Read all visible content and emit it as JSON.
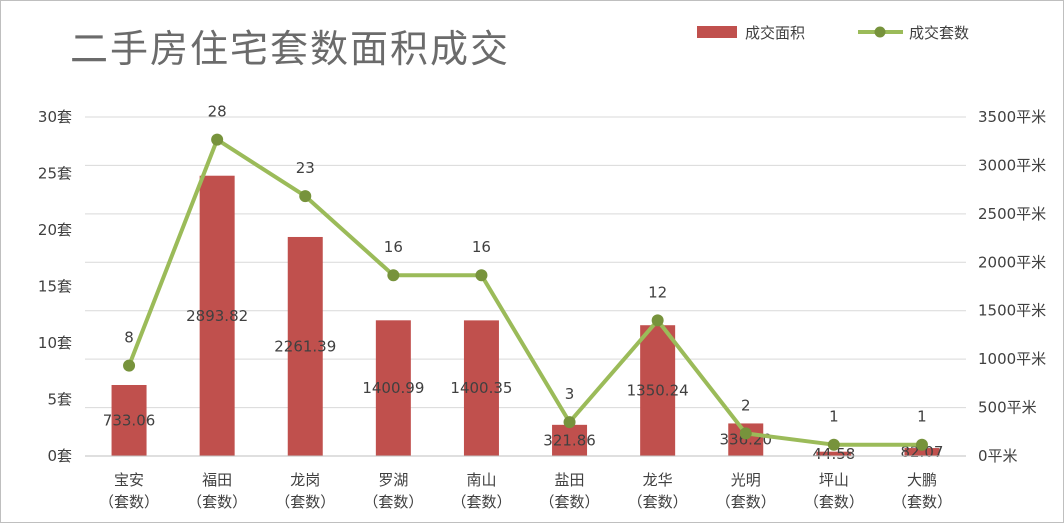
{
  "chart_data": {
    "type": "bar+line",
    "title": "二手房住宅套数面积成交",
    "categories": [
      "宝安",
      "福田",
      "龙岗",
      "罗湖",
      "南山",
      "盐田",
      "龙华",
      "光明",
      "坪山",
      "大鹏"
    ],
    "category_sublabel": "（套数）",
    "series": [
      {
        "name": "成交面积",
        "kind": "bar",
        "axis": "right",
        "color": "#c0504d",
        "values": [
          733.06,
          2893.82,
          2261.39,
          1400.99,
          1400.35,
          321.86,
          1350.24,
          336.2,
          44.58,
          82.07
        ],
        "labels": [
          "733.06",
          "2893.82",
          "2261.39",
          "1400.99",
          "1400.35",
          "321.86",
          "1350.24",
          "336.20",
          "44.58",
          "82.07"
        ]
      },
      {
        "name": "成交套数",
        "kind": "line",
        "axis": "left",
        "color": "#9bbb59",
        "values": [
          8,
          28,
          23,
          16,
          16,
          3,
          12,
          2,
          1,
          1
        ],
        "labels": [
          "8",
          "28",
          "23",
          "16",
          "16",
          "3",
          "12",
          "2",
          "1",
          "1"
        ]
      }
    ],
    "y_left": {
      "min": 0,
      "max": 30,
      "step": 5,
      "unit": "套",
      "ticks": [
        "0套",
        "5套",
        "10套",
        "15套",
        "20套",
        "25套",
        "30套"
      ]
    },
    "y_right": {
      "min": 0,
      "max": 3500,
      "step": 500,
      "unit": "平米",
      "ticks": [
        "0平米",
        "500平米",
        "1000平米",
        "1500平米",
        "2000平米",
        "2500平米",
        "3000平米",
        "3500平米"
      ]
    },
    "grid": true,
    "legend_position": "top-right"
  }
}
